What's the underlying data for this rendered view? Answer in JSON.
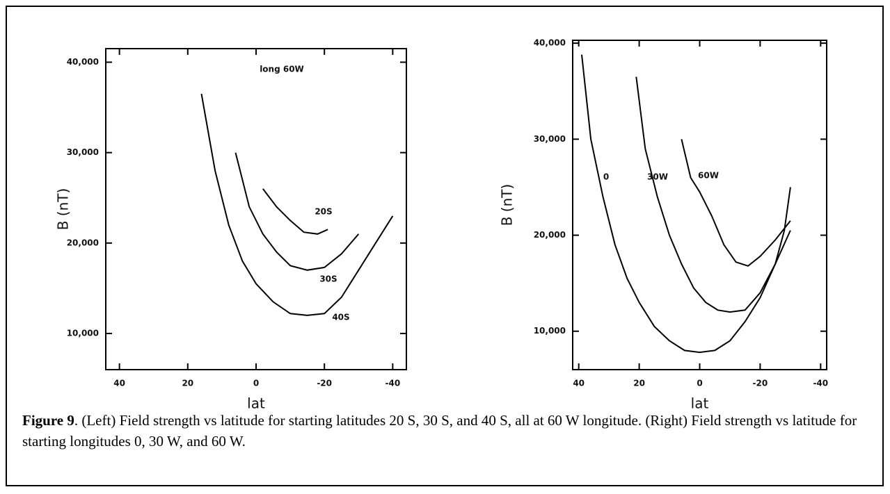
{
  "chart_data": [
    {
      "type": "line",
      "annotation": "long 60W",
      "xlabel": "lat",
      "ylabel": "B (nT)",
      "xlim": [
        44,
        -44
      ],
      "xticks": [
        40,
        20,
        0,
        -20,
        -40
      ],
      "ylim": [
        6000,
        41500
      ],
      "yticks": [
        {
          "value": 10000,
          "label": "10,000"
        },
        {
          "value": 20000,
          "label": "20,000"
        },
        {
          "value": 30000,
          "label": "30,000"
        },
        {
          "value": 40000,
          "label": "40,000"
        }
      ],
      "series": [
        {
          "name": "20S",
          "color": "#000000",
          "x": [
            -2,
            -6,
            -10,
            -14,
            -18,
            -21
          ],
          "values": [
            26000,
            24000,
            22500,
            21200,
            21000,
            21500
          ]
        },
        {
          "name": "30S",
          "color": "#000000",
          "x": [
            6,
            2,
            -2,
            -6,
            -10,
            -15,
            -20,
            -25,
            -30
          ],
          "values": [
            30000,
            24000,
            21000,
            19000,
            17500,
            17000,
            17300,
            18800,
            21000
          ]
        },
        {
          "name": "40S",
          "color": "#000000",
          "x": [
            16,
            12,
            8,
            4,
            0,
            -5,
            -10,
            -15,
            -20,
            -25,
            -30,
            -35,
            -40
          ],
          "values": [
            36500,
            28000,
            22000,
            18000,
            15500,
            13500,
            12200,
            12000,
            12200,
            14000,
            17000,
            20000,
            23000
          ]
        }
      ]
    },
    {
      "type": "line",
      "xlabel": "lat",
      "ylabel": "B (nT)",
      "xlim": [
        42,
        -42
      ],
      "xticks": [
        40,
        20,
        0,
        -20,
        -40
      ],
      "ylim": [
        6000,
        40300
      ],
      "yticks": [
        {
          "value": 10000,
          "label": "10,000"
        },
        {
          "value": 20000,
          "label": "20,000"
        },
        {
          "value": 30000,
          "label": "30,000"
        },
        {
          "value": 40000,
          "label": "40,000"
        }
      ],
      "series": [
        {
          "name": "0",
          "color": "#000000",
          "x": [
            39,
            36,
            32,
            28,
            24,
            20,
            15,
            10,
            5,
            0,
            -5,
            -10,
            -15,
            -20,
            -25,
            -28,
            -30
          ],
          "values": [
            38800,
            30000,
            24000,
            19000,
            15500,
            13000,
            10500,
            9000,
            8000,
            7800,
            8000,
            9000,
            11000,
            13500,
            17000,
            20500,
            25000
          ]
        },
        {
          "name": "30W",
          "color": "#000000",
          "x": [
            21,
            18,
            14,
            10,
            6,
            2,
            -2,
            -6,
            -10,
            -15,
            -20,
            -25,
            -30
          ],
          "values": [
            36500,
            29000,
            24000,
            20000,
            17000,
            14500,
            13000,
            12200,
            12000,
            12200,
            14000,
            17000,
            20500
          ]
        },
        {
          "name": "60W",
          "color": "#000000",
          "x": [
            6,
            3,
            0,
            -4,
            -8,
            -12,
            -16,
            -20,
            -25,
            -30
          ],
          "values": [
            30000,
            26000,
            24500,
            22000,
            19000,
            17200,
            16800,
            17800,
            19500,
            21500
          ]
        }
      ]
    }
  ],
  "caption": {
    "label": "Figure 9",
    "text": ". (Left) Field strength vs latitude for starting latitudes 20 S, 30 S, and 40 S, all at 60 W longitude. (Right) Field strength vs latitude for starting longitudes 0, 30 W, and 60 W."
  }
}
